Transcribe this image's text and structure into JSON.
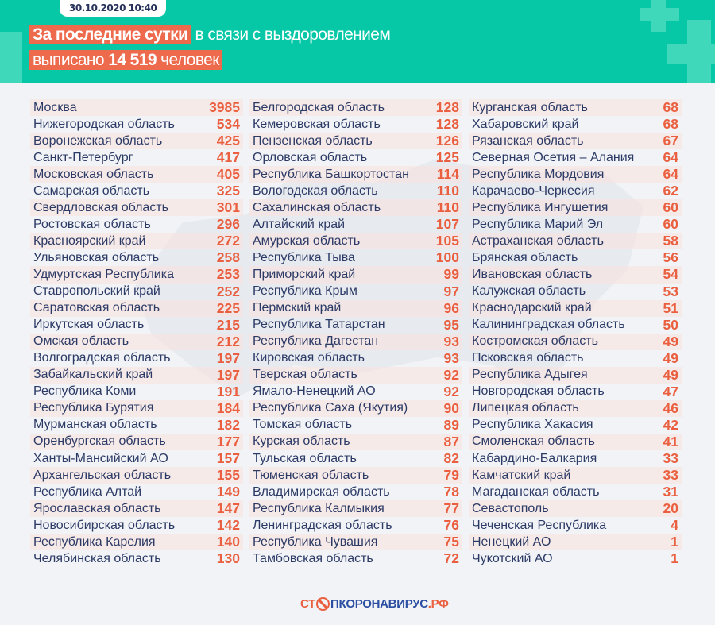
{
  "header": {
    "date": "30.10.2020 10:40",
    "line1_highlight": "За последние сутки",
    "line1_rest": "в связи с выздоровлением",
    "line2_pre": "выписано",
    "line2_number": "14 519",
    "line2_post": "человек"
  },
  "colors": {
    "teal": "#07c8a6",
    "orange": "#ee6a4d",
    "text": "#2c3a66"
  },
  "columns": [
    [
      [
        "Москва",
        "3985"
      ],
      [
        "Нижегородская область",
        "534"
      ],
      [
        "Воронежская область",
        "425"
      ],
      [
        "Санкт-Петербург",
        "417"
      ],
      [
        "Московская область",
        "405"
      ],
      [
        "Самарская область",
        "325"
      ],
      [
        "Свердловская область",
        "301"
      ],
      [
        "Ростовская область",
        "296"
      ],
      [
        "Красноярский край",
        "272"
      ],
      [
        "Ульяновская область",
        "258"
      ],
      [
        "Удмуртская Республика",
        "253"
      ],
      [
        "Ставропольский край",
        "252"
      ],
      [
        "Саратовская область",
        "225"
      ],
      [
        "Иркутская область",
        "215"
      ],
      [
        "Омская область",
        "212"
      ],
      [
        "Волгоградская область",
        "197"
      ],
      [
        "Забайкальский край",
        "197"
      ],
      [
        "Республика Коми",
        "191"
      ],
      [
        "Республика Бурятия",
        "184"
      ],
      [
        "Мурманская область",
        "182"
      ],
      [
        "Оренбургская область",
        "177"
      ],
      [
        "Ханты-Мансийский АО",
        "157"
      ],
      [
        "Архангельская область",
        "155"
      ],
      [
        "Республика Алтай",
        "149"
      ],
      [
        "Ярославская область",
        "147"
      ],
      [
        "Новосибирская область",
        "142"
      ],
      [
        "Республика Карелия",
        "140"
      ],
      [
        "Челябинская область",
        "130"
      ]
    ],
    [
      [
        "Белгородская область",
        "128"
      ],
      [
        "Кемеровская область",
        "128"
      ],
      [
        "Пензенская область",
        "126"
      ],
      [
        "Орловская область",
        "125"
      ],
      [
        "Республика Башкортостан",
        "114"
      ],
      [
        "Вологодская область",
        "110"
      ],
      [
        "Сахалинская область",
        "110"
      ],
      [
        "Алтайский край",
        "107"
      ],
      [
        "Амурская область",
        "105"
      ],
      [
        "Республика Тыва",
        "100"
      ],
      [
        "Приморский край",
        "99"
      ],
      [
        "Республика Крым",
        "97"
      ],
      [
        "Пермский край",
        "96"
      ],
      [
        "Республика Татарстан",
        "95"
      ],
      [
        "Республика Дагестан",
        "93"
      ],
      [
        "Кировская область",
        "93"
      ],
      [
        "Тверская область",
        "92"
      ],
      [
        "Ямало-Ненецкий АО",
        "92"
      ],
      [
        "Республика Саха (Якутия)",
        "90"
      ],
      [
        "Томская область",
        "89"
      ],
      [
        "Курская область",
        "87"
      ],
      [
        "Тульская область",
        "82"
      ],
      [
        "Тюменская область",
        "79"
      ],
      [
        "Владимирская область",
        "78"
      ],
      [
        "Республика Калмыкия",
        "77"
      ],
      [
        "Ленинградская область",
        "76"
      ],
      [
        "Республика Чувашия",
        "75"
      ],
      [
        "Тамбовская область",
        "72"
      ]
    ],
    [
      [
        "Курганская область",
        "68"
      ],
      [
        "Хабаровский край",
        "68"
      ],
      [
        "Рязанская область",
        "67"
      ],
      [
        "Северная Осетия – Алания",
        "64"
      ],
      [
        "Республика Мордовия",
        "64"
      ],
      [
        "Карачаево-Черкесия",
        "62"
      ],
      [
        "Республика Ингушетия",
        "60"
      ],
      [
        "Республика Марий Эл",
        "60"
      ],
      [
        "Астраханская область",
        "58"
      ],
      [
        "Брянская область",
        "56"
      ],
      [
        "Ивановская область",
        "54"
      ],
      [
        "Калужская область",
        "53"
      ],
      [
        "Краснодарский край",
        "51"
      ],
      [
        "Калининградская область",
        "50"
      ],
      [
        "Костромская область",
        "49"
      ],
      [
        "Псковская область",
        "49"
      ],
      [
        "Республика Адыгея",
        "49"
      ],
      [
        "Новгородская область",
        "47"
      ],
      [
        "Липецкая область",
        "46"
      ],
      [
        "Республика Хакасия",
        "42"
      ],
      [
        "Смоленская область",
        "41"
      ],
      [
        "Кабардино-Балкария",
        "33"
      ],
      [
        "Камчатский край",
        "33"
      ],
      [
        "Магаданская область",
        "31"
      ],
      [
        "Севастополь",
        "20"
      ],
      [
        "Чеченская Республика",
        "4"
      ],
      [
        "Ненецкий АО",
        "1"
      ],
      [
        "Чукотский АО",
        "1"
      ]
    ]
  ],
  "footer": {
    "logo_pre": "СТ",
    "logo_post": "ПКОРОНАВИРУС",
    "logo_tld": ".РФ"
  }
}
